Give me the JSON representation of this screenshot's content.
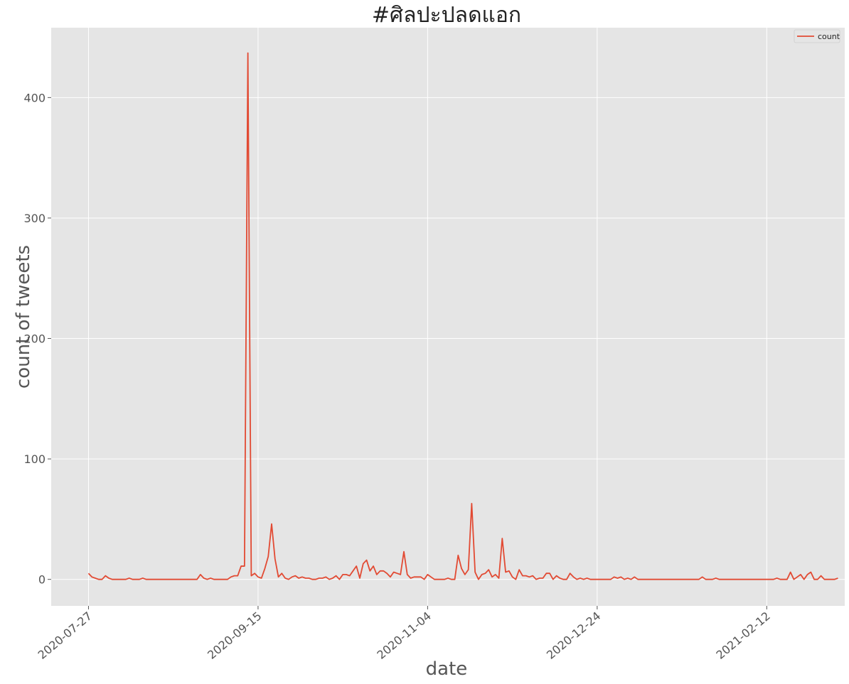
{
  "chart_data": {
    "type": "line",
    "title": "#ศิลปะปลดแอก",
    "xlabel": "date",
    "ylabel": "count of tweets",
    "start_date": "2020-07-27",
    "xticks": [
      "2020-07-27",
      "2020-09-15",
      "2020-11-04",
      "2020-12-24",
      "2021-02-12"
    ],
    "yticks": [
      0,
      100,
      200,
      300,
      400
    ],
    "xlim": [
      "2020-07-16",
      "2021-03-07"
    ],
    "ylim": [
      -22,
      458
    ],
    "grid": true,
    "legend_position": "top-right",
    "series": [
      {
        "name": "count",
        "color": "#E24A33",
        "values": [
          5,
          2,
          1,
          0,
          0,
          3,
          1,
          0,
          0,
          0,
          0,
          0,
          1,
          0,
          0,
          0,
          1,
          0,
          0,
          0,
          0,
          0,
          0,
          0,
          0,
          0,
          0,
          0,
          0,
          0,
          0,
          0,
          0,
          4,
          1,
          0,
          1,
          0,
          0,
          0,
          0,
          0,
          2,
          3,
          3,
          11,
          11,
          437,
          3,
          5,
          2,
          1,
          9,
          19,
          46,
          17,
          2,
          5,
          1,
          0,
          2,
          3,
          1,
          2,
          1,
          1,
          0,
          0,
          1,
          1,
          2,
          0,
          1,
          3,
          0,
          4,
          4,
          3,
          7,
          11,
          1,
          13,
          16,
          7,
          11,
          4,
          7,
          7,
          5,
          2,
          6,
          5,
          4,
          23,
          4,
          1,
          2,
          2,
          2,
          0,
          4,
          2,
          0,
          0,
          0,
          0,
          1,
          0,
          0,
          20,
          9,
          4,
          8,
          63,
          6,
          0,
          4,
          5,
          8,
          2,
          4,
          1,
          34,
          6,
          7,
          2,
          0,
          8,
          3,
          3,
          2,
          3,
          0,
          1,
          1,
          5,
          5,
          0,
          3,
          1,
          0,
          0,
          5,
          2,
          0,
          1,
          0,
          1,
          0,
          0,
          0,
          0,
          0,
          0,
          0,
          2,
          1,
          2,
          0,
          1,
          0,
          2,
          0,
          0,
          0,
          0,
          0,
          0,
          0,
          0,
          0,
          0,
          0,
          0,
          0,
          0,
          0,
          0,
          0,
          0,
          0,
          2,
          0,
          0,
          0,
          1,
          0,
          0,
          0,
          0,
          0,
          0,
          0,
          0,
          0,
          0,
          0,
          0,
          0,
          0,
          0,
          0,
          0,
          1,
          0,
          0,
          0,
          6,
          0,
          2,
          4,
          0,
          4,
          6,
          0,
          0,
          3,
          0,
          0,
          0,
          0,
          1
        ]
      }
    ]
  }
}
